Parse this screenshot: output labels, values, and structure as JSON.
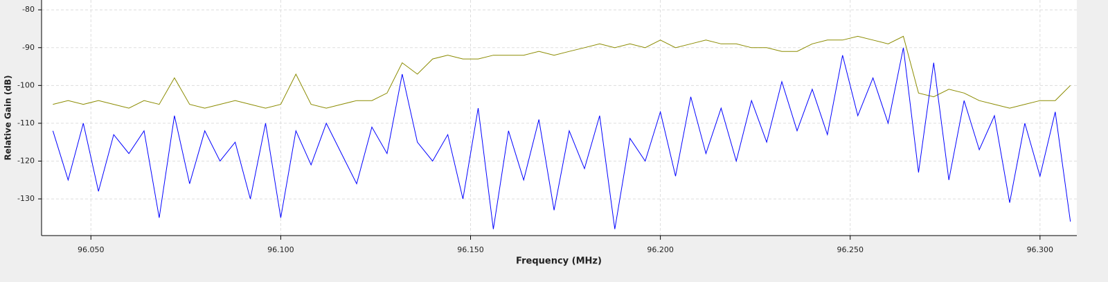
{
  "chart_data": {
    "type": "line",
    "x_label": "Frequency (MHz)",
    "y_label": "Relative Gain (dB)",
    "x": [
      96.04,
      96.044,
      96.048,
      96.052,
      96.056,
      96.06,
      96.064,
      96.068,
      96.072,
      96.076,
      96.08,
      96.084,
      96.088,
      96.092,
      96.096,
      96.1,
      96.104,
      96.108,
      96.112,
      96.116,
      96.12,
      96.124,
      96.128,
      96.132,
      96.136,
      96.14,
      96.144,
      96.148,
      96.152,
      96.156,
      96.16,
      96.164,
      96.168,
      96.172,
      96.176,
      96.18,
      96.184,
      96.188,
      96.192,
      96.196,
      96.2,
      96.204,
      96.208,
      96.212,
      96.216,
      96.22,
      96.224,
      96.228,
      96.232,
      96.236,
      96.24,
      96.244,
      96.248,
      96.252,
      96.256,
      96.26,
      96.264,
      96.268,
      96.272,
      96.276,
      96.28,
      96.284,
      96.288,
      96.292,
      96.296,
      96.3,
      96.304,
      96.308
    ],
    "series": [
      {
        "color": "#8b8b00",
        "values": [
          -105,
          -104,
          -105,
          -104,
          -105,
          -106,
          -104,
          -105,
          -98,
          -105,
          -106,
          -105,
          -104,
          -105,
          -106,
          -105,
          -97,
          -105,
          -106,
          -105,
          -104,
          -104,
          -102,
          -94,
          -97,
          -93,
          -92,
          -93,
          -93,
          -92,
          -92,
          -92,
          -91,
          -92,
          -91,
          -90,
          -89,
          -90,
          -89,
          -90,
          -88,
          -90,
          -89,
          -88,
          -89,
          -89,
          -90,
          -90,
          -91,
          -91,
          -89,
          -88,
          -88,
          -87,
          -88,
          -89,
          -87,
          -102,
          -103,
          -101,
          -102,
          -104,
          -105,
          -106,
          -105,
          -104,
          -104,
          -100
        ]
      },
      {
        "color": "#0000ff",
        "values": [
          -112,
          -125,
          -110,
          -128,
          -113,
          -118,
          -112,
          -135,
          -108,
          -126,
          -112,
          -120,
          -115,
          -130,
          -110,
          -135,
          -112,
          -121,
          -110,
          -118,
          -126,
          -111,
          -118,
          -97,
          -115,
          -120,
          -113,
          -130,
          -106,
          -138,
          -112,
          -125,
          -109,
          -133,
          -112,
          -122,
          -108,
          -138,
          -114,
          -120,
          -107,
          -124,
          -103,
          -118,
          -106,
          -120,
          -104,
          -115,
          -99,
          -112,
          -101,
          -113,
          -92,
          -108,
          -98,
          -110,
          -90,
          -123,
          -94,
          -125,
          -104,
          -117,
          -108,
          -131,
          -110,
          -124,
          -107,
          -136
        ]
      }
    ],
    "xlim": [
      96.037,
      96.3097
    ],
    "xticks": [
      {
        "value": 96.05,
        "label": "96.050"
      },
      {
        "value": 96.1,
        "label": "96.100"
      },
      {
        "value": 96.15,
        "label": "96.150"
      },
      {
        "value": 96.2,
        "label": "96.200"
      },
      {
        "value": 96.25,
        "label": "96.250"
      },
      {
        "value": 96.3,
        "label": "96.300"
      }
    ],
    "ylim": [
      -139.7,
      -77.4
    ],
    "yticks": [
      -80,
      -90,
      -100,
      -110,
      -120,
      -130
    ],
    "grid": true
  }
}
